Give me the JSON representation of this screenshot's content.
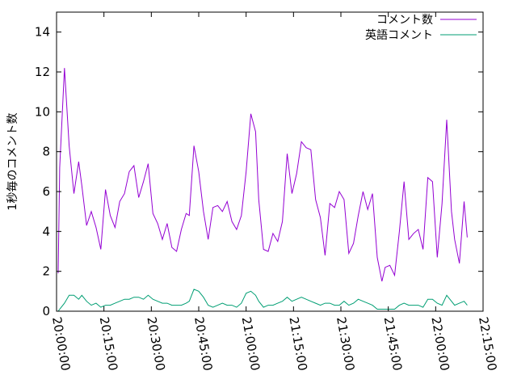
{
  "chart_data": {
    "type": "line",
    "ylabel": "1秒毎のコメント数",
    "xlabel": "",
    "ylim": [
      0,
      15
    ],
    "yticks": [
      0,
      2,
      4,
      6,
      8,
      10,
      12,
      14
    ],
    "xlim": [
      "20:00:00",
      "22:15:00"
    ],
    "xticks": [
      "20:00:00",
      "20:15:00",
      "20:30:00",
      "20:45:00",
      "21:00:00",
      "21:15:00",
      "21:30:00",
      "21:45:00",
      "22:00:00",
      "22:15:00"
    ],
    "grid": false,
    "legend_position": "top-right",
    "series": [
      {
        "name": "コメント数",
        "color": "#9400d3",
        "x": [
          "20:00:30",
          "20:01:00",
          "20:02:30",
          "20:04:00",
          "20:05:30",
          "20:07:00",
          "20:08:00",
          "20:09:30",
          "20:11:00",
          "20:12:30",
          "20:14:00",
          "20:15:30",
          "20:17:00",
          "20:18:30",
          "20:20:00",
          "20:21:30",
          "20:23:00",
          "20:24:30",
          "20:26:00",
          "20:27:30",
          "20:29:00",
          "20:30:30",
          "20:32:00",
          "20:33:30",
          "20:35:00",
          "20:36:30",
          "20:38:00",
          "20:39:30",
          "20:41:00",
          "20:42:00",
          "20:43:30",
          "20:45:00",
          "20:46:30",
          "20:48:00",
          "20:49:30",
          "20:51:00",
          "20:52:30",
          "20:54:00",
          "20:55:30",
          "20:57:00",
          "20:58:30",
          "21:00:00",
          "21:01:30",
          "21:03:00",
          "21:04:00",
          "21:05:30",
          "21:07:00",
          "21:08:30",
          "21:10:00",
          "21:11:30",
          "21:13:00",
          "21:14:30",
          "21:16:00",
          "21:17:30",
          "21:19:00",
          "21:20:30",
          "21:22:00",
          "21:23:30",
          "21:25:00",
          "21:26:30",
          "21:28:00",
          "21:29:30",
          "21:31:00",
          "21:32:30",
          "21:34:00",
          "21:35:30",
          "21:37:00",
          "21:38:30",
          "21:40:00",
          "21:41:30",
          "21:43:00",
          "21:44:00",
          "21:45:30",
          "21:47:00",
          "21:48:30",
          "21:50:00",
          "21:51:30",
          "21:53:00",
          "21:54:30",
          "21:56:00",
          "21:57:30",
          "21:59:00",
          "22:00:30",
          "22:02:00",
          "22:03:30",
          "22:05:00",
          "22:06:00",
          "22:07:30",
          "22:09:00",
          "22:10:00"
        ],
        "values": [
          1.9,
          7.2,
          12.2,
          8.3,
          5.9,
          7.5,
          6.3,
          4.3,
          5.0,
          4.2,
          3.1,
          6.1,
          4.8,
          4.2,
          5.5,
          5.9,
          7.0,
          7.3,
          5.7,
          6.5,
          7.4,
          4.9,
          4.4,
          3.6,
          4.4,
          3.2,
          3.0,
          4.1,
          4.9,
          4.8,
          8.3,
          7.0,
          5.0,
          3.6,
          5.2,
          5.3,
          5.0,
          5.5,
          4.5,
          4.1,
          4.8,
          7.0,
          9.9,
          9.0,
          5.6,
          3.1,
          3.0,
          3.9,
          3.5,
          4.5,
          7.9,
          5.9,
          6.9,
          8.5,
          8.2,
          8.1,
          5.6,
          4.7,
          2.8,
          5.4,
          5.2,
          6.0,
          5.6,
          2.9,
          3.4,
          4.8,
          6.0,
          5.1,
          5.9,
          2.7,
          1.5,
          2.2,
          2.3,
          1.8,
          4.0,
          6.5,
          3.6,
          3.9,
          4.1,
          3.1,
          6.7,
          6.5,
          2.7,
          5.4,
          9.6,
          5.0,
          3.6,
          2.4,
          5.5,
          3.7
        ]
      },
      {
        "name": "英語コメント",
        "color": "#009e73",
        "x": [
          "20:00:30",
          "20:01:00",
          "20:02:30",
          "20:04:00",
          "20:05:30",
          "20:07:00",
          "20:08:00",
          "20:09:30",
          "20:11:00",
          "20:12:30",
          "20:14:00",
          "20:15:30",
          "20:17:00",
          "20:18:30",
          "20:20:00",
          "20:21:30",
          "20:23:00",
          "20:24:30",
          "20:26:00",
          "20:27:30",
          "20:29:00",
          "20:30:30",
          "20:32:00",
          "20:33:30",
          "20:35:00",
          "20:36:30",
          "20:38:00",
          "20:39:30",
          "20:41:00",
          "20:42:00",
          "20:43:30",
          "20:45:00",
          "20:46:30",
          "20:48:00",
          "20:49:30",
          "20:51:00",
          "20:52:30",
          "20:54:00",
          "20:55:30",
          "20:57:00",
          "20:58:30",
          "21:00:00",
          "21:01:30",
          "21:03:00",
          "21:04:00",
          "21:05:30",
          "21:07:00",
          "21:08:30",
          "21:10:00",
          "21:11:30",
          "21:13:00",
          "21:14:30",
          "21:16:00",
          "21:17:30",
          "21:19:00",
          "21:20:30",
          "21:22:00",
          "21:23:30",
          "21:25:00",
          "21:26:30",
          "21:28:00",
          "21:29:30",
          "21:31:00",
          "21:32:30",
          "21:34:00",
          "21:35:30",
          "21:37:00",
          "21:38:30",
          "21:40:00",
          "21:41:30",
          "21:43:00",
          "21:44:00",
          "21:45:30",
          "21:47:00",
          "21:48:30",
          "21:50:00",
          "21:51:30",
          "21:53:00",
          "21:54:30",
          "21:56:00",
          "21:57:30",
          "21:59:00",
          "22:00:30",
          "22:02:00",
          "22:03:30",
          "22:05:00",
          "22:06:00",
          "22:07:30",
          "22:09:00",
          "22:10:00"
        ],
        "values": [
          0.0,
          0.1,
          0.4,
          0.8,
          0.8,
          0.6,
          0.8,
          0.5,
          0.3,
          0.4,
          0.2,
          0.3,
          0.3,
          0.4,
          0.5,
          0.6,
          0.6,
          0.7,
          0.7,
          0.6,
          0.8,
          0.6,
          0.5,
          0.4,
          0.4,
          0.3,
          0.3,
          0.3,
          0.4,
          0.5,
          1.1,
          1.0,
          0.7,
          0.3,
          0.2,
          0.3,
          0.4,
          0.3,
          0.3,
          0.2,
          0.4,
          0.9,
          1.0,
          0.8,
          0.5,
          0.2,
          0.3,
          0.3,
          0.4,
          0.5,
          0.7,
          0.5,
          0.6,
          0.7,
          0.6,
          0.5,
          0.4,
          0.3,
          0.4,
          0.4,
          0.3,
          0.3,
          0.5,
          0.3,
          0.4,
          0.6,
          0.5,
          0.4,
          0.3,
          0.1,
          0.1,
          0.1,
          0.1,
          0.1,
          0.3,
          0.4,
          0.3,
          0.3,
          0.3,
          0.2,
          0.6,
          0.6,
          0.4,
          0.3,
          0.8,
          0.5,
          0.3,
          0.4,
          0.5,
          0.3
        ]
      }
    ]
  }
}
